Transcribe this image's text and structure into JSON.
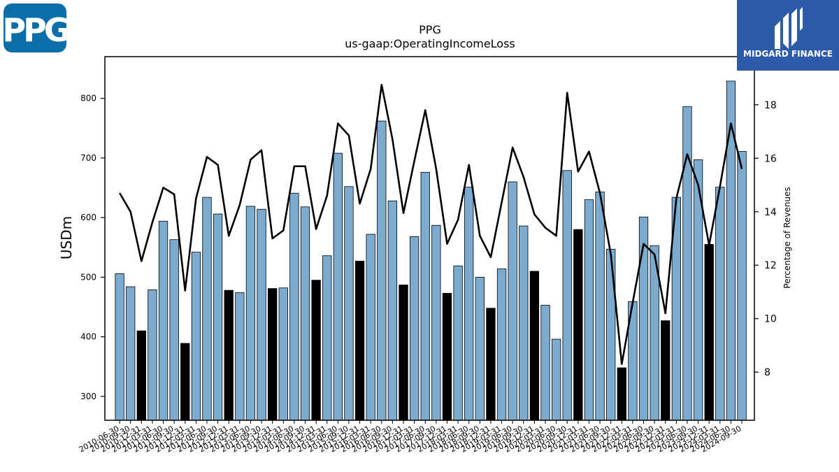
{
  "branding": {
    "company_logo_text": "PPG",
    "publisher_name": "MIDGARD FINANCE",
    "colors": {
      "ppg_blue": "#0b6ea8",
      "midgard_blue": "#2d5ba9"
    }
  },
  "chart_data": {
    "type": "bar",
    "title": "PPG",
    "subtitle": "us-gaap:OperatingIncomeLoss",
    "ylabel": "USDm",
    "y2label": "Percentage of Revenues",
    "ylim": [
      260,
      870
    ],
    "y2lim": [
      6.2,
      19.8
    ],
    "yticks": [
      300,
      400,
      500,
      600,
      700,
      800
    ],
    "y2ticks": [
      8,
      10,
      12,
      14,
      16,
      18
    ],
    "colors": {
      "quarter": "#7bacd0",
      "annual": "#000000",
      "line": "#000000"
    },
    "categories": [
      "2010-06-30",
      "2010-09-30",
      "2010-12-31",
      "2011-03-31",
      "2011-06-30",
      "2011-09-30",
      "2011-12-31",
      "2012-03-31",
      "2012-06-30",
      "2012-09-30",
      "2012-12-31",
      "2013-03-31",
      "2013-06-30",
      "2013-09-30",
      "2013-12-31",
      "2014-03-31",
      "2014-06-30",
      "2014-09-30",
      "2014-12-31",
      "2015-03-31",
      "2015-06-30",
      "2015-09-30",
      "2015-12-31",
      "2016-03-31",
      "2016-06-30",
      "2016-09-30",
      "2016-12-31",
      "2017-03-31",
      "2017-06-30",
      "2017-09-30",
      "2017-12-31",
      "2018-03-31",
      "2018-06-30",
      "2018-09-30",
      "2018-12-31",
      "2019-03-31",
      "2019-06-30",
      "2019-09-30",
      "2019-12-31",
      "2020-03-31",
      "2020-06-30",
      "2020-09-30",
      "2020-12-31",
      "2021-03-31",
      "2021-06-30",
      "2021-09-30",
      "2021-12-31",
      "2022-03-31",
      "2022-06-30",
      "2022-09-30",
      "2022-12-31",
      "2023-03-31",
      "2023-06-30",
      "2023-09-30",
      "2023-12-31",
      "2024-03-31",
      "2024-06-30",
      "2024-09-30"
    ],
    "series": [
      {
        "kind": "bar",
        "values": [
          506,
          484,
          410,
          479,
          594,
          563,
          389,
          542,
          634,
          606,
          478,
          474,
          619,
          614,
          481,
          482,
          641,
          618,
          495,
          536,
          708,
          652,
          527,
          572,
          762,
          628,
          487,
          568,
          676,
          587,
          473,
          519,
          651,
          500,
          448,
          514,
          660,
          586,
          510,
          453,
          396,
          679,
          580,
          630,
          643,
          547,
          348,
          459,
          601,
          553,
          427,
          634,
          786,
          697,
          555,
          651,
          829,
          711
        ],
        "annual": [
          false,
          false,
          true,
          false,
          false,
          false,
          true,
          false,
          false,
          false,
          true,
          false,
          false,
          false,
          true,
          false,
          false,
          false,
          true,
          false,
          false,
          false,
          true,
          false,
          false,
          false,
          true,
          false,
          false,
          false,
          true,
          false,
          false,
          false,
          true,
          false,
          false,
          false,
          true,
          false,
          false,
          false,
          true,
          false,
          false,
          false,
          true,
          false,
          false,
          false,
          true,
          false,
          false,
          false,
          true,
          false,
          false,
          false
        ]
      },
      {
        "kind": "line",
        "axis": "right",
        "values": [
          14.7,
          14.0,
          12.15,
          13.6,
          14.9,
          14.65,
          11.05,
          14.5,
          16.05,
          15.75,
          13.1,
          14.25,
          15.95,
          16.3,
          13.0,
          13.3,
          15.7,
          15.7,
          13.35,
          14.6,
          17.3,
          16.85,
          14.3,
          15.6,
          18.75,
          16.7,
          13.95,
          15.9,
          17.8,
          15.6,
          12.8,
          13.7,
          15.75,
          13.1,
          12.3,
          14.35,
          16.4,
          15.3,
          13.9,
          13.4,
          13.1,
          18.45,
          15.5,
          16.25,
          14.7,
          12.4,
          8.3,
          10.6,
          12.8,
          12.4,
          10.2,
          14.5,
          16.15,
          15.0,
          12.75,
          14.95,
          17.3,
          15.6
        ]
      }
    ]
  }
}
